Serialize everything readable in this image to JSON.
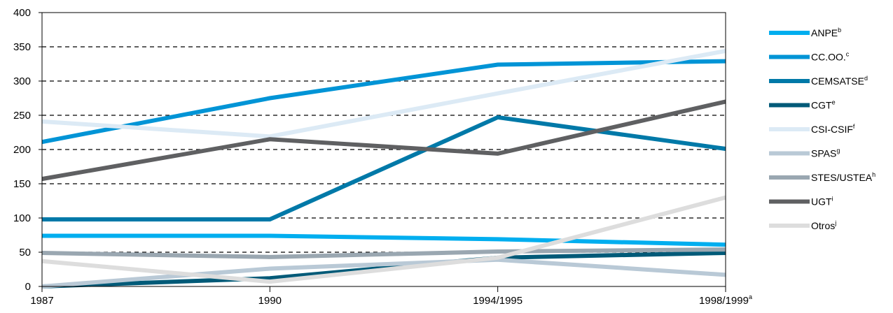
{
  "chart_data": {
    "type": "line",
    "categories": [
      "1987",
      "1990",
      "1994/1995",
      "1998/1999"
    ],
    "category_superscripts": [
      "",
      "",
      "",
      "a"
    ],
    "ylim": [
      0,
      400
    ],
    "yticks": [
      0,
      50,
      100,
      150,
      200,
      250,
      300,
      350,
      400
    ],
    "grid": true,
    "legend_position": "right",
    "series": [
      {
        "name": "ANPE",
        "sup": "b",
        "color": "#00AEEF",
        "values": [
          74,
          74,
          69,
          61
        ]
      },
      {
        "name": "CC.OO.",
        "sup": "c",
        "color": "#0094D6",
        "values": [
          211,
          275,
          324,
          329
        ]
      },
      {
        "name": "CEMSATSE",
        "sup": "d",
        "color": "#0079A8",
        "values": [
          98,
          98,
          247,
          201
        ]
      },
      {
        "name": "CGT",
        "sup": "e",
        "color": "#005A78",
        "values": [
          0,
          12,
          42,
          49
        ]
      },
      {
        "name": "CSI-CSIF",
        "sup": "f",
        "color": "#DCEAF5",
        "values": [
          241,
          219,
          282,
          344
        ]
      },
      {
        "name": "SPAS",
        "sup": "g",
        "color": "#B9C9D6",
        "values": [
          0,
          26,
          39,
          17
        ]
      },
      {
        "name": "STES/USTEA",
        "sup": "h",
        "color": "#9AA7B1",
        "values": [
          49,
          43,
          51,
          54
        ]
      },
      {
        "name": "UGT",
        "sup": "i",
        "color": "#5F6062",
        "values": [
          157,
          215,
          194,
          270
        ]
      },
      {
        "name": "Otros",
        "sup": "j",
        "color": "#DDDDDD",
        "values": [
          37,
          7,
          42,
          130
        ]
      }
    ]
  }
}
